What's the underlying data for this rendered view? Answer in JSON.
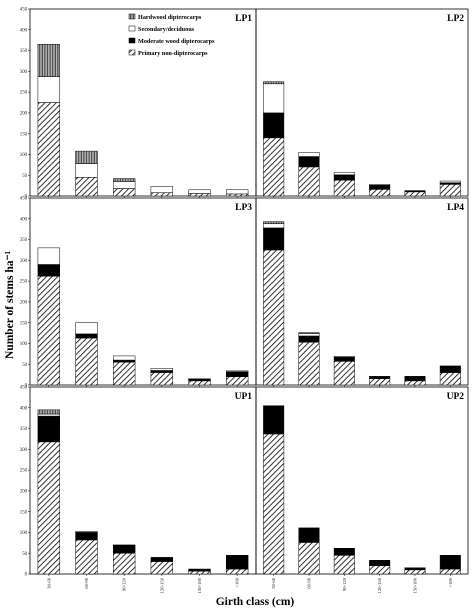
{
  "chart_data": {
    "type": "bar",
    "stacked": true,
    "ylabel": "Number of stems ha⁻¹",
    "xlabel": "Girth class (cm)",
    "ylim": [
      0,
      450
    ],
    "yticks": [
      0,
      50,
      100,
      150,
      200,
      250,
      300,
      350,
      400,
      450
    ],
    "grid": false,
    "legend_position": "top-left",
    "series": [
      {
        "key": "hardwood",
        "name": "Hardwood dipterocarps"
      },
      {
        "key": "secondary",
        "name": "Secondary/deciduous"
      },
      {
        "key": "moderate",
        "name": "Moderate wood dipterocarps"
      },
      {
        "key": "primary",
        "name": "Primary non-dipterocarps"
      }
    ],
    "colors": {
      "hardwood": "#8a8a8a",
      "secondary": "#ffffff",
      "moderate": "#000000",
      "primary": "#ffffff",
      "stroke": "#000000"
    },
    "panels": [
      {
        "label": "LP1",
        "categories": [
          "30-60",
          "60-90",
          "90-120",
          "120-150",
          "150-180",
          ">180"
        ],
        "show_xticks": false,
        "values": {
          "primary": [
            225,
            45,
            18,
            8,
            6,
            5
          ],
          "moderate": [
            0,
            0,
            0,
            0,
            0,
            0
          ],
          "secondary": [
            62,
            33,
            17,
            15,
            9,
            10
          ],
          "hardwood": [
            78,
            30,
            7,
            0,
            0,
            0
          ]
        }
      },
      {
        "label": "LP2",
        "categories": [
          "30-60",
          "60-90",
          "90-120",
          "120-150",
          "150-180",
          ">180"
        ],
        "show_xticks": false,
        "values": {
          "primary": [
            140,
            70,
            38,
            16,
            10,
            28
          ],
          "moderate": [
            60,
            25,
            13,
            10,
            2,
            4
          ],
          "secondary": [
            70,
            10,
            6,
            2,
            1,
            4
          ],
          "hardwood": [
            5,
            0,
            0,
            0,
            0,
            0
          ]
        }
      },
      {
        "label": "LP3",
        "categories": [
          "30-60",
          "60-90",
          "90-120",
          "120-150",
          "150-180",
          ">180"
        ],
        "show_xticks": false,
        "values": {
          "primary": [
            262,
            113,
            55,
            30,
            10,
            20
          ],
          "moderate": [
            28,
            10,
            5,
            5,
            4,
            12
          ],
          "secondary": [
            40,
            27,
            10,
            5,
            1,
            2
          ],
          "hardwood": [
            0,
            0,
            0,
            0,
            0,
            0
          ]
        }
      },
      {
        "label": "LP4",
        "categories": [
          "30-60",
          "60-90",
          "90-120",
          "120-150",
          "150-180",
          ">180"
        ],
        "show_xticks": false,
        "values": {
          "primary": [
            325,
            103,
            57,
            15,
            10,
            30
          ],
          "moderate": [
            53,
            15,
            10,
            5,
            10,
            15
          ],
          "secondary": [
            10,
            6,
            2,
            1,
            1,
            1
          ],
          "hardwood": [
            5,
            2,
            0,
            0,
            0,
            0
          ]
        }
      },
      {
        "label": "UP1",
        "categories": [
          "30-60",
          "60-90",
          "90-120",
          "120-150",
          "150-180",
          ">180"
        ],
        "show_xticks": true,
        "values": {
          "primary": [
            318,
            82,
            50,
            30,
            7,
            12
          ],
          "moderate": [
            62,
            18,
            20,
            10,
            5,
            33
          ],
          "secondary": [
            5,
            0,
            0,
            0,
            0,
            0
          ],
          "hardwood": [
            10,
            2,
            0,
            0,
            0,
            0
          ]
        }
      },
      {
        "label": "UP2",
        "categories": [
          "30-60",
          "60-90",
          "90-120",
          "120-150",
          "150-180",
          ">180"
        ],
        "show_xticks": true,
        "values": {
          "primary": [
            337,
            76,
            45,
            20,
            10,
            12
          ],
          "moderate": [
            68,
            35,
            17,
            13,
            5,
            33
          ],
          "secondary": [
            0,
            0,
            0,
            0,
            0,
            0
          ],
          "hardwood": [
            0,
            0,
            0,
            0,
            0,
            0
          ]
        }
      }
    ]
  }
}
